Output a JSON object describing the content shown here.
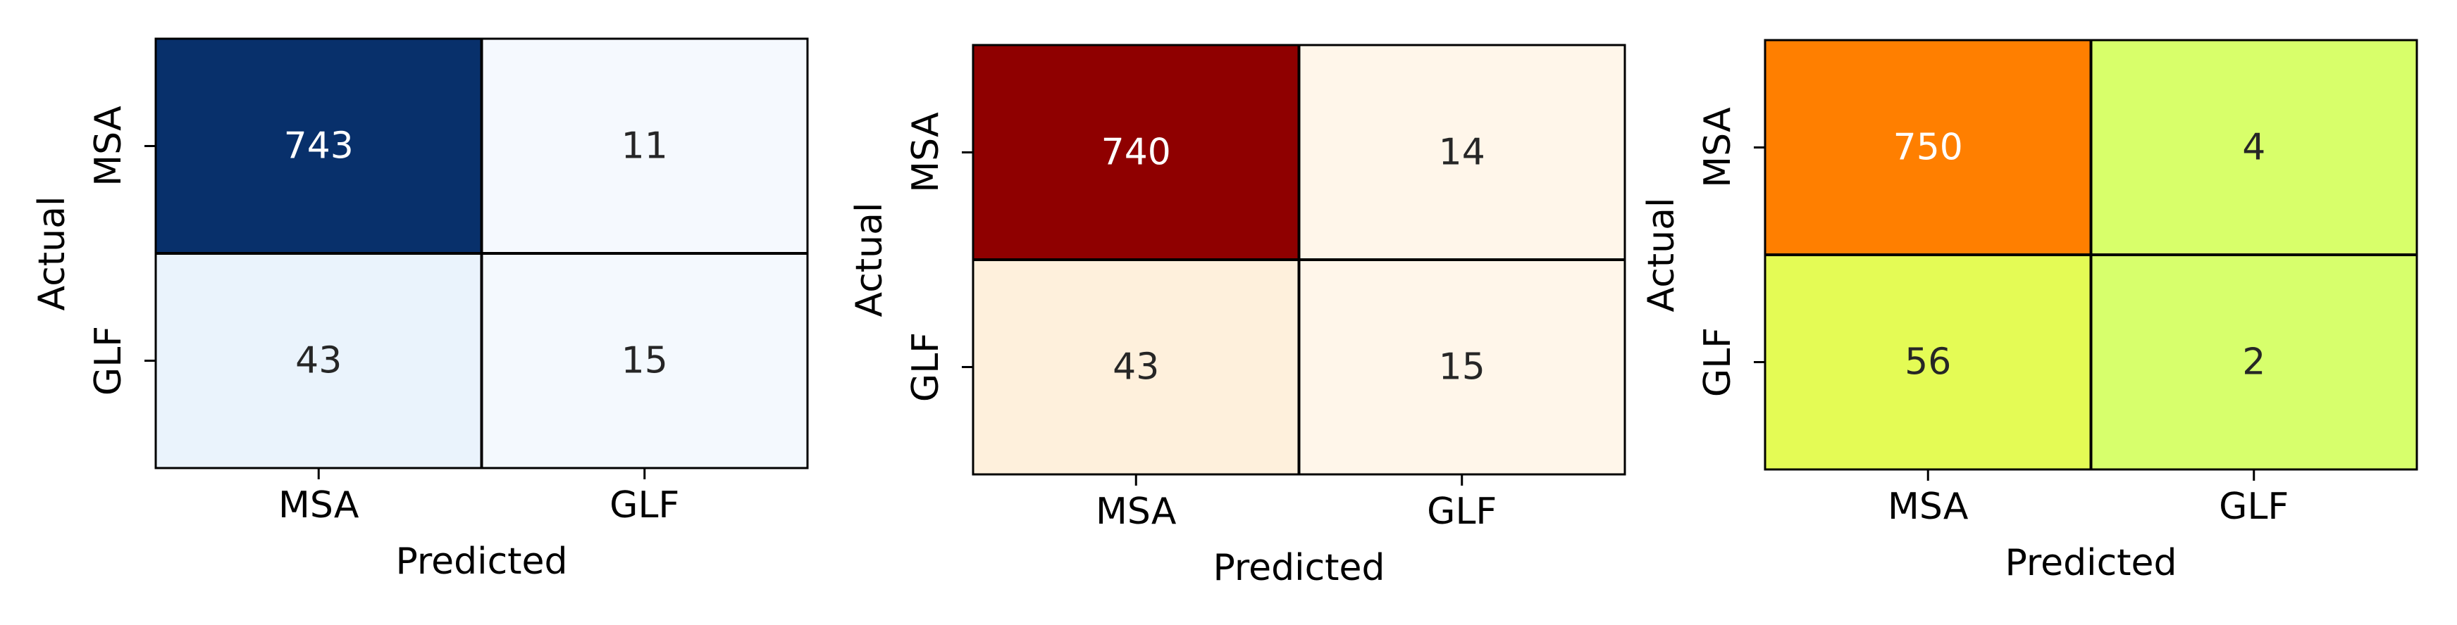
{
  "chart_data": [
    {
      "type": "heatmap",
      "xlabel": "Predicted",
      "ylabel": "Actual",
      "x_categories": [
        "MSA",
        "GLF"
      ],
      "y_categories": [
        "MSA",
        "GLF"
      ],
      "values": [
        [
          743,
          11
        ],
        [
          43,
          15
        ]
      ],
      "colormap": "Blues",
      "cell_colors": [
        [
          "#08306b",
          "#f5f9fe"
        ],
        [
          "#eaf3fc",
          "#f4f9fe"
        ]
      ],
      "text_colors": [
        [
          "#ffffff",
          "#262626"
        ],
        [
          "#262626",
          "#262626"
        ]
      ]
    },
    {
      "type": "heatmap",
      "xlabel": "Predicted",
      "ylabel": "Actual",
      "x_categories": [
        "MSA",
        "GLF"
      ],
      "y_categories": [
        "MSA",
        "GLF"
      ],
      "values": [
        [
          740,
          14
        ],
        [
          43,
          15
        ]
      ],
      "colormap": "OrRd",
      "cell_colors": [
        [
          "#8f0000",
          "#fff6ea"
        ],
        [
          "#fef0dc",
          "#fff6ea"
        ]
      ],
      "text_colors": [
        [
          "#ffffff",
          "#262626"
        ],
        [
          "#262626",
          "#262626"
        ]
      ]
    },
    {
      "type": "heatmap",
      "xlabel": "Predicted",
      "ylabel": "Actual",
      "x_categories": [
        "MSA",
        "GLF"
      ],
      "y_categories": [
        "MSA",
        "GLF"
      ],
      "values": [
        [
          750,
          4
        ],
        [
          56,
          2
        ]
      ],
      "colormap": "Wistia",
      "cell_colors": [
        [
          "#ff7f00",
          "#d8ff6a"
        ],
        [
          "#e4fb55",
          "#d7ff6c"
        ]
      ],
      "text_colors": [
        [
          "#ffffff",
          "#262626"
        ],
        [
          "#262626",
          "#262626"
        ]
      ]
    }
  ]
}
